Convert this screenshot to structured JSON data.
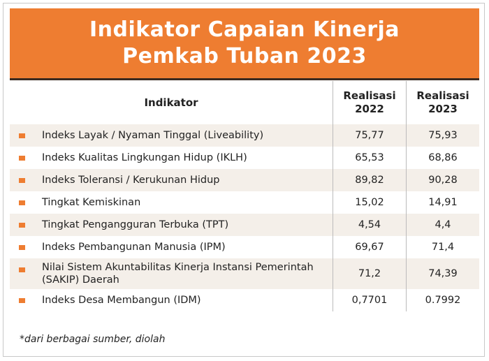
{
  "header": {
    "title": [
      "Indikator Capaian Kinerja",
      "Pemkab Tuban 2023"
    ]
  },
  "table": {
    "columns": [
      "Indikator",
      "Realisasi 2022",
      "Realisasi 2023"
    ],
    "rows": [
      [
        "Indeks Layak / Nyaman Tinggal (Liveability)",
        "75,77",
        "75,93"
      ],
      [
        "Indeks Kualitas Lingkungan Hidup (IKLH)",
        "65,53",
        "68,86"
      ],
      [
        "Indeks Toleransi / Kerukunan Hidup",
        "89,82",
        "90,28"
      ],
      [
        "Tingkat Kemiskinan",
        "15,02",
        "14,91"
      ],
      [
        "Tingkat Pengangguran Terbuka (TPT)",
        "4,54",
        "4,4"
      ],
      [
        "Indeks Pembangunan Manusia (IPM)",
        "69,67",
        "71,4"
      ],
      [
        "Nilai Sistem Akuntabilitas Kinerja Instansi Pemerintah (SAKIP) Daerah",
        "71,2",
        "74,39"
      ],
      [
        "Indeks Desa Membangun (IDM)",
        "0,7701",
        "0.7992"
      ]
    ]
  },
  "footnote": "*dari berbagai sumber, diolah"
}
